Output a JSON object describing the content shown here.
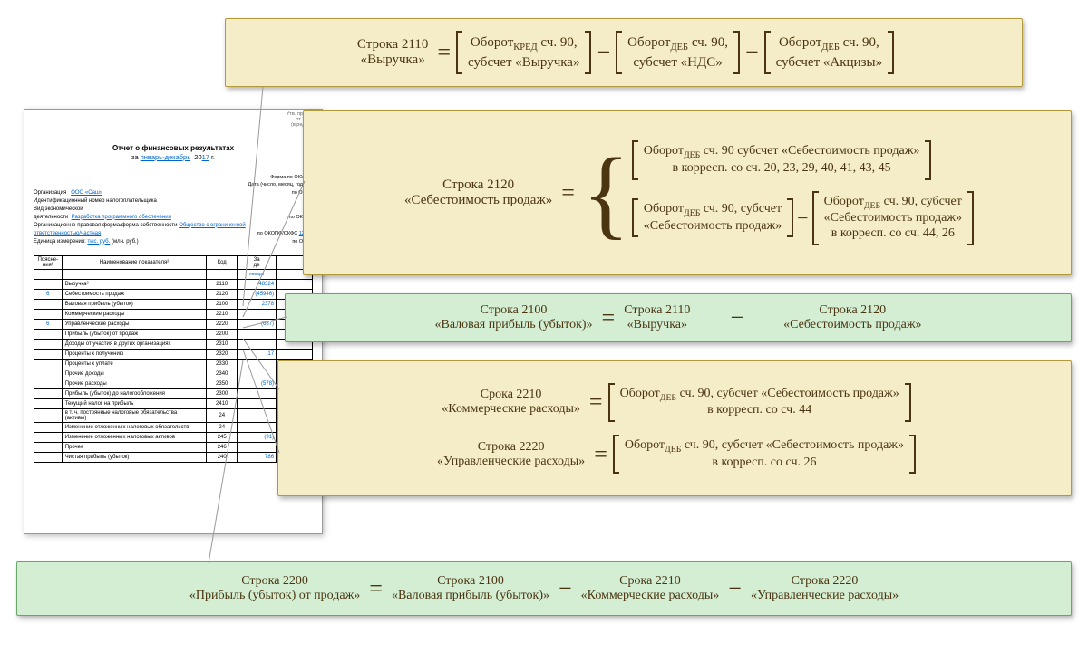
{
  "doc": {
    "title": "Отчет о финансовых результатах",
    "period_prefix": "за ",
    "period": "январь-декабрь",
    "year_prefix": "20",
    "year": "17",
    "year_suffix": " г.",
    "org_label": "Организация",
    "org": "ООО «Саш»",
    "inn_label": "Идентификационный номер налогоплательщика",
    "activity_label": "Вид экономической",
    "activity_label2": "деятельности",
    "activity": "Разработка программного обеспечения",
    "form_label": "Организационно-правовая форма/форма собственности",
    "form": "Общество с ограниченной",
    "form2": "ответственностью/частная",
    "unit_label": "Единица измерения:",
    "unit": "тыс. руб.",
    "unit2": "(млн. руб.)",
    "right_notes": "Утв. приказ\nот 2 ию\n(в ред. от",
    "form_okud": "Форма по ОКУД",
    "date_label": "Дата (число, месяц, год)",
    "okpo": "по ОКПО",
    "inn": "ИНН",
    "okved": "по ОКВЭД",
    "okopf": "по ОКОПФ/ОКФС",
    "okei": "по ОКЕИ",
    "codes": {
      "okud": "0",
      "date": "31",
      "okpo": "774",
      "inn": "",
      "okved": "",
      "okopf": "12300"
    },
    "cols": {
      "poj": "Поясне-\nния¹",
      "name": "Наименование показателя²",
      "code": "Код",
      "p1": "За\nде",
      "p2": ""
    },
    "month": "январь",
    "rows": [
      {
        "p": "",
        "n": "Выручка²",
        "c": "2110",
        "v1": "48324",
        "v2": ""
      },
      {
        "p": "6",
        "n": "Себестоимость продаж",
        "c": "2120",
        "v1": "(45946)",
        "v2": ""
      },
      {
        "p": "",
        "n": "Валовая прибыль (убыток)",
        "c": "2100",
        "v1": "2378",
        "v2": ""
      },
      {
        "p": "",
        "n": "Коммерческие расходы",
        "c": "2210",
        "v1": "",
        "v2": ""
      },
      {
        "p": "6",
        "n": "Управленческие расходы",
        "c": "2220",
        "v1": "(687)",
        "v2": ""
      },
      {
        "p": "",
        "n": "   Прибыль (убыток) от продаж",
        "c": "2200",
        "v1": "",
        "v2": ""
      },
      {
        "p": "",
        "n": "Доходы от участия в других организациях",
        "c": "2310",
        "v1": "",
        "v2": ""
      },
      {
        "p": "",
        "n": "Проценты к получению",
        "c": "2320",
        "v1": "17",
        "v2": ""
      },
      {
        "p": "",
        "n": "Проценты к уплате",
        "c": "2330",
        "v1": "",
        "v2": ""
      },
      {
        "p": "",
        "n": "Прочие доходы",
        "c": "2340",
        "v1": "",
        "v2": ""
      },
      {
        "p": "",
        "n": "Прочие расходы",
        "c": "2350",
        "v1": "(578)",
        "v2": ""
      },
      {
        "p": "",
        "n": "   Прибыль (убыток) до налогообложения",
        "c": "2300",
        "v1": "",
        "v2": ""
      },
      {
        "p": "",
        "n": "Текущий налог на прибыль",
        "c": "2410",
        "v1": "",
        "v2": ""
      },
      {
        "p": "",
        "n": "   в т. ч. постоянные налоговые обязательства\n   (активы)",
        "c": "24",
        "v1": "",
        "v2": ""
      },
      {
        "p": "",
        "n": "Изменение отложенных налоговых обязательств",
        "c": "24",
        "v1": "",
        "v2": ""
      },
      {
        "p": "",
        "n": "Изменение отложенных налоговых активов",
        "c": "245",
        "v1": "(91)",
        "v2": ""
      },
      {
        "p": "",
        "n": "Прочее",
        "c": "246",
        "v1": "",
        "v2": ""
      },
      {
        "p": "",
        "n": "   Чистая прибыль (убыток)",
        "c": "240",
        "v1": "786",
        "v2": ""
      }
    ]
  },
  "f2110": {
    "lhs1": "Строка 2110",
    "lhs2": "«Выручка»",
    "t1a": "Оборот",
    "t1sub": "КРЕД",
    "t1b": " сч. 90,",
    "t1c": "субсчет «Выручка»",
    "t2a": "Оборот",
    "t2sub": "ДЕБ",
    "t2b": " сч. 90,",
    "t2c": "субсчет «НДС»",
    "t3a": "Оборот",
    "t3sub": "ДЕБ",
    "t3b": " сч. 90,",
    "t3c": "субсчет «Акцизы»"
  },
  "f2120": {
    "lhs1": "Строка 2120",
    "lhs2": "«Себестоимость продаж»",
    "r1a": "Оборот",
    "r1sub": "ДЕБ",
    "r1b": " сч. 90 субсчет «Себестоимость продаж»",
    "r1c": "в корресп. со сч. 20, 23, 29, 40, 41, 43, 45",
    "r2a": "Оборот",
    "r2sub": "ДЕБ",
    "r2b": " сч. 90, субсчет",
    "r2c": "«Себестоимость продаж»",
    "r3a": "Оборот",
    "r3sub": "ДЕБ",
    "r3b": " сч. 90, субсчет",
    "r3c": "«Себестоимость продаж»",
    "r3d": "в корресп. со сч. 44, 26"
  },
  "f2100": {
    "lhs1": "Строка 2100",
    "lhs2": "«Валовая прибыль (убыток)»",
    "t1a": "Строка 2110",
    "t1b": "«Выручка»",
    "t2a": "Строка 2120",
    "t2b": "«Себестоимость продаж»"
  },
  "f2210": {
    "lhs1": "Срока 2210",
    "lhs2": "«Коммерческие расходы»",
    "r1a": "Оборот",
    "r1sub": "ДЕБ",
    "r1b": " сч. 90, субсчет «Себестоимость продаж»",
    "r1c": "в корресп. со сч. 44"
  },
  "f2220": {
    "lhs1": "Строка 2220",
    "lhs2": "«Управленческие расходы»",
    "r1a": "Оборот",
    "r1sub": "ДЕБ",
    "r1b": " сч. 90, субсчет «Себестоимость продаж»",
    "r1c": "в корресп. со сч. 26"
  },
  "f2200": {
    "lhs1": "Строка 2200",
    "lhs2": "«Прибыль (убыток) от продаж»",
    "t1a": "Строка 2100",
    "t1b": "«Валовая прибыль (убыток)»",
    "t2a": "Срока 2210",
    "t2b": "«Коммерческие расходы»",
    "t3a": "Строка 2220",
    "t3b": "«Управленческие расходы»"
  },
  "style": {
    "yel_bg": "#f5edc7",
    "yel_border": "#b29a3a",
    "grn_bg": "#d4eed4",
    "grn_border": "#6aa66a",
    "text": "#4a3510",
    "doc_link": "#0066cc"
  }
}
